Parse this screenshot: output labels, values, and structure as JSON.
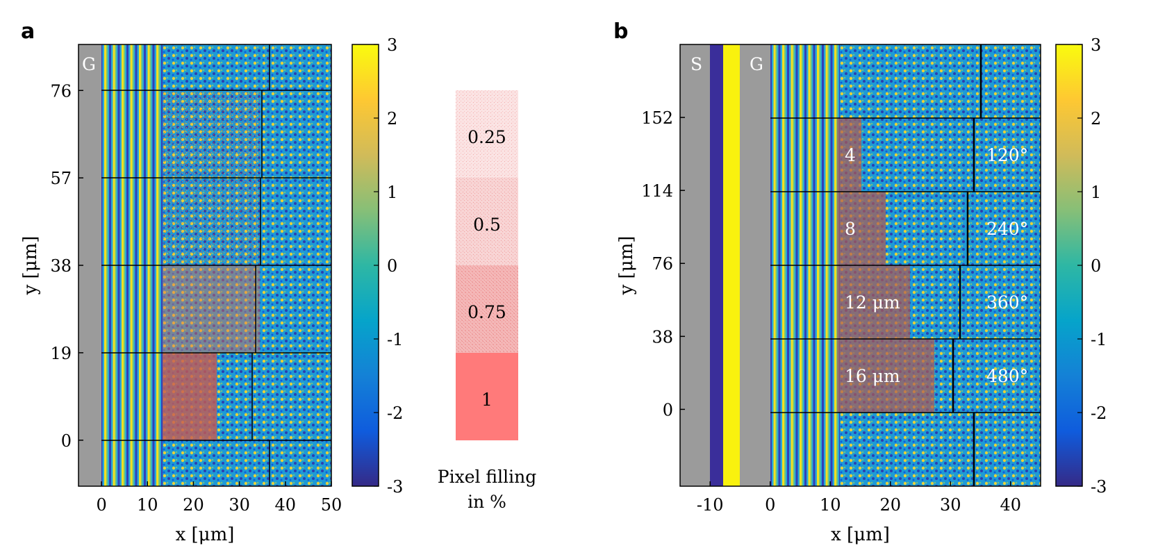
{
  "chart_data": [
    {
      "panel": "a",
      "type": "heatmap",
      "xlabel": "x [μm]",
      "ylabel": "y [μm]",
      "xlim": [
        -5,
        50
      ],
      "ylim": [
        -10,
        86
      ],
      "xticks": [
        "0",
        "10",
        "20",
        "30",
        "40",
        "50"
      ],
      "yticks": [
        "0",
        "19",
        "38",
        "57",
        "76"
      ],
      "region_labels": [
        "G"
      ],
      "colorbar": {
        "min": -3,
        "max": 3,
        "ticks": [
          "3",
          "2",
          "1",
          "0",
          "-1",
          "-2",
          "-3"
        ]
      }
    },
    {
      "panel": "fill-legend",
      "type": "table",
      "levels": [
        "0.25",
        "0.5",
        "0.75",
        "1"
      ],
      "title_line1": "Pixel filling",
      "title_line2": "in %"
    },
    {
      "panel": "b",
      "type": "heatmap",
      "xlabel": "x [μm]",
      "ylabel": "y [μm]",
      "xlim": [
        -15,
        45
      ],
      "ylim": [
        -40,
        190
      ],
      "xticks": [
        "-10",
        "0",
        "10",
        "20",
        "30",
        "40"
      ],
      "yticks": [
        "0",
        "38",
        "76",
        "114",
        "152"
      ],
      "region_labels": [
        "S",
        "G"
      ],
      "block_labels_left": [
        "4",
        "8",
        "12 μm",
        "16 μm"
      ],
      "block_labels_right": [
        "120°",
        "240°",
        "360°",
        "480°"
      ],
      "colorbar": {
        "min": -3,
        "max": 3,
        "ticks": [
          "3",
          "2",
          "1",
          "0",
          "-1",
          "-2",
          "-3"
        ]
      }
    }
  ]
}
